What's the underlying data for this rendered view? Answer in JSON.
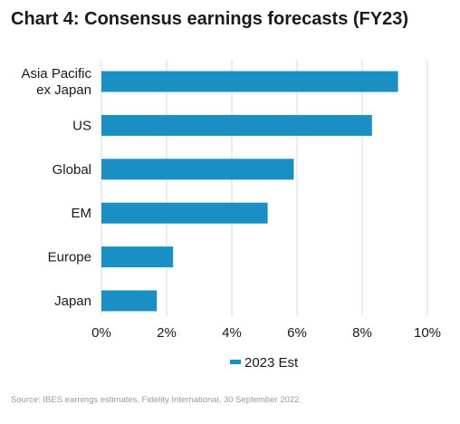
{
  "title": "Chart 4: Consensus earnings forecasts (FY23)",
  "source": "Source: IBES earnings estimates, Fidelity International, 30 September 2022.",
  "colors": {
    "bar": "#1a8fc4",
    "grid": "#d9d9d9"
  },
  "chart_data": {
    "type": "bar",
    "orientation": "horizontal",
    "categories": [
      "Asia Pacific\nex Japan",
      "US",
      "Global",
      "EM",
      "Europe",
      "Japan"
    ],
    "series": [
      {
        "name": "2023 Est",
        "values": [
          9.1,
          8.3,
          5.9,
          5.1,
          2.2,
          1.7
        ]
      }
    ],
    "xlim": [
      0,
      10
    ],
    "xticks": [
      0,
      2,
      4,
      6,
      8,
      10
    ],
    "xtick_labels": [
      "0%",
      "2%",
      "4%",
      "6%",
      "8%",
      "10%"
    ],
    "grid": "vertical",
    "legend": "bottom"
  }
}
